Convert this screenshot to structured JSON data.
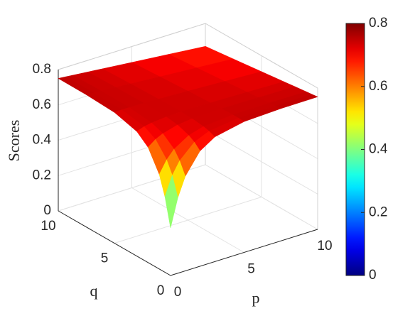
{
  "chart_data": {
    "type": "surface",
    "xlabel": "p",
    "ylabel": "q",
    "zlabel": "Scores",
    "x": [
      0,
      0.5,
      1,
      2,
      3,
      5,
      7.5,
      10
    ],
    "y": [
      0,
      0.5,
      1,
      2,
      3,
      5,
      7.5,
      10
    ],
    "z": [
      [
        0.27,
        0.428,
        0.535,
        0.653,
        0.706,
        0.741,
        0.749,
        0.75
      ],
      [
        0.428,
        0.535,
        0.605,
        0.684,
        0.72,
        0.742,
        0.746,
        0.746
      ],
      [
        0.535,
        0.605,
        0.652,
        0.704,
        0.728,
        0.742,
        0.744,
        0.742
      ],
      [
        0.653,
        0.684,
        0.704,
        0.727,
        0.736,
        0.74,
        0.738,
        0.734
      ],
      [
        0.706,
        0.72,
        0.728,
        0.736,
        0.739,
        0.737,
        0.732,
        0.726
      ],
      [
        0.741,
        0.742,
        0.742,
        0.74,
        0.737,
        0.73,
        0.72,
        0.71
      ],
      [
        0.749,
        0.746,
        0.744,
        0.738,
        0.732,
        0.72,
        0.705,
        0.69
      ],
      [
        0.75,
        0.746,
        0.742,
        0.734,
        0.726,
        0.71,
        0.69,
        0.67
      ]
    ],
    "xlim": [
      0,
      10
    ],
    "ylim": [
      0,
      10
    ],
    "zlim": [
      0,
      0.8
    ],
    "xticks": [
      0,
      5,
      10
    ],
    "yticks": [
      0,
      5,
      10
    ],
    "zticks": [
      0,
      0.2,
      0.4,
      0.6,
      0.8
    ],
    "grid": true,
    "colormap": "jet",
    "clim": [
      0,
      0.8
    ],
    "cticks": [
      0,
      0.2,
      0.4,
      0.6,
      0.8
    ]
  }
}
